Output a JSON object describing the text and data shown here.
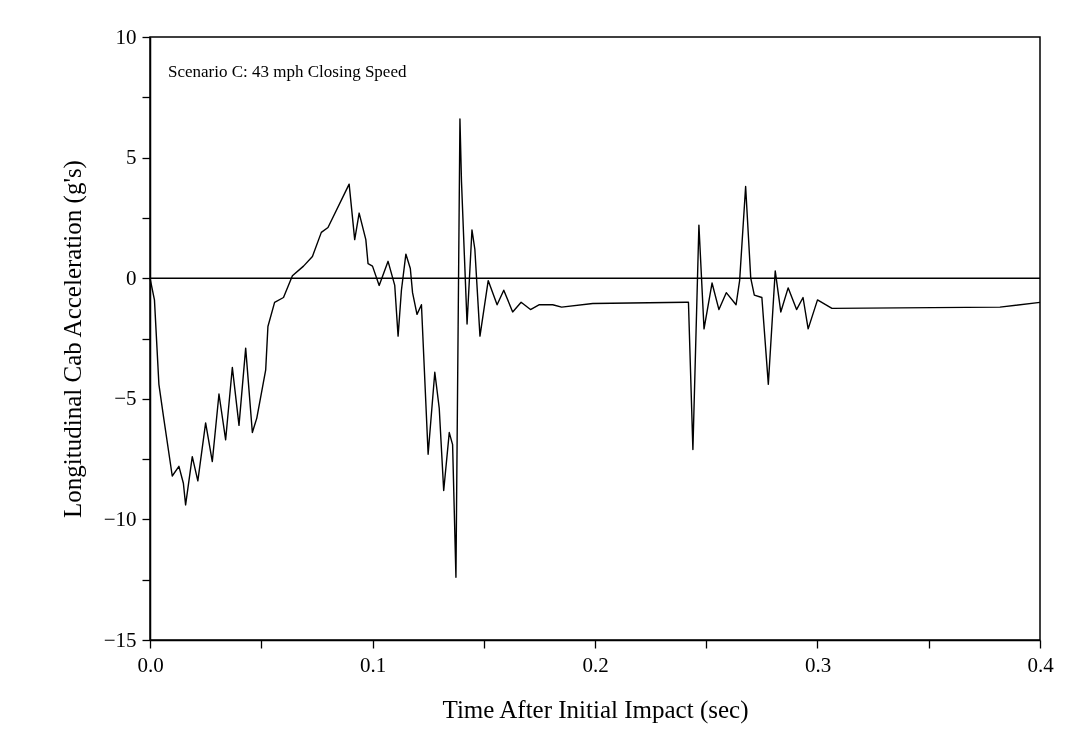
{
  "chart_data": {
    "type": "line",
    "xlabel": "Time After Initial Impact (sec)",
    "ylabel": "Longitudinal Cab Acceleration (g's)",
    "annotations": [
      "Scenario C: 43 mph Closing Speed"
    ],
    "x": [
      0,
      0.002,
      0.004,
      0.006,
      0.01,
      0.013,
      0.015,
      0.016,
      0.019,
      0.0215,
      0.025,
      0.028,
      0.031,
      0.034,
      0.037,
      0.04,
      0.043,
      0.046,
      0.048,
      0.052,
      0.053,
      0.056,
      0.06,
      0.064,
      0.069,
      0.073,
      0.077,
      0.08,
      0.0895,
      0.092,
      0.094,
      0.097,
      0.098,
      0.1,
      0.103,
      0.107,
      0.11,
      0.1115,
      0.113,
      0.115,
      0.117,
      0.118,
      0.12,
      0.122,
      0.125,
      0.128,
      0.13,
      0.132,
      0.1345,
      0.136,
      0.1375,
      0.1393,
      0.14,
      0.1425,
      0.1447,
      0.146,
      0.1483,
      0.152,
      0.156,
      0.159,
      0.163,
      0.1668,
      0.171,
      0.175,
      0.181,
      0.185,
      0.199,
      0.241,
      0.242,
      0.244,
      0.2467,
      0.249,
      0.2526,
      0.2557,
      0.259,
      0.2634,
      0.265,
      0.2677,
      0.27,
      0.2716,
      0.275,
      0.2779,
      0.281,
      0.2835,
      0.2868,
      0.2906,
      0.2935,
      0.2958,
      0.3,
      0.3065,
      0.382,
      0.4
    ],
    "series": [
      {
        "color": "#000000",
        "values": [
          0,
          -0.9,
          -4.4,
          -5.7,
          -8.2,
          -7.8,
          -8.5,
          -9.4,
          -7.4,
          -8.4,
          -6.0,
          -7.6,
          -4.8,
          -6.7,
          -3.7,
          -6.1,
          -2.9,
          -6.4,
          -5.8,
          -3.8,
          -2.0,
          -1.0,
          -0.8,
          0.1,
          0.5,
          0.9,
          1.9,
          2.1,
          3.9,
          1.6,
          2.7,
          1.6,
          0.6,
          0.5,
          -0.3,
          0.7,
          -0.3,
          -2.4,
          -0.5,
          1.0,
          0.4,
          -0.6,
          -1.5,
          -1.1,
          -7.3,
          -3.9,
          -5.4,
          -8.8,
          -6.4,
          -6.9,
          -12.4,
          6.6,
          4.0,
          -1.9,
          2.0,
          1.2,
          -2.4,
          -0.1,
          -1.1,
          -0.5,
          -1.4,
          -1.0,
          -1.3,
          -1.1,
          -1.1,
          -1.2,
          -1.05,
          -1.0,
          -1.0,
          -7.1,
          2.2,
          -2.1,
          -0.2,
          -1.3,
          -0.6,
          -1.1,
          -0.1,
          3.8,
          0,
          -0.7,
          -0.8,
          -4.4,
          0.3,
          -1.4,
          -0.4,
          -1.3,
          -0.8,
          -2.1,
          -0.9,
          -1.25,
          -1.2,
          -1.0
        ]
      }
    ],
    "ref_lines": [
      {
        "axis": "y",
        "value": 0,
        "color": "#000000"
      }
    ],
    "xlim": [
      0,
      0.4
    ],
    "ylim": [
      -15,
      10
    ],
    "xticks": [
      {
        "value": 0,
        "label": "0.0"
      },
      {
        "value": 0.05,
        "label": null
      },
      0.1,
      {
        "value": 0.15,
        "label": null
      },
      0.2,
      {
        "value": 0.25,
        "label": null
      },
      0.3,
      {
        "value": 0.35,
        "label": null
      },
      0.4
    ],
    "yticks": [
      -15,
      {
        "value": -12.5,
        "label": null
      },
      -10,
      {
        "value": -7.5,
        "label": null
      },
      -5,
      {
        "value": -2.5,
        "label": null
      },
      0,
      {
        "value": 2.5,
        "label": null
      },
      5,
      {
        "value": 7.5,
        "label": null
      },
      10
    ],
    "grid": false,
    "marker": "none",
    "line_style": "solid"
  }
}
